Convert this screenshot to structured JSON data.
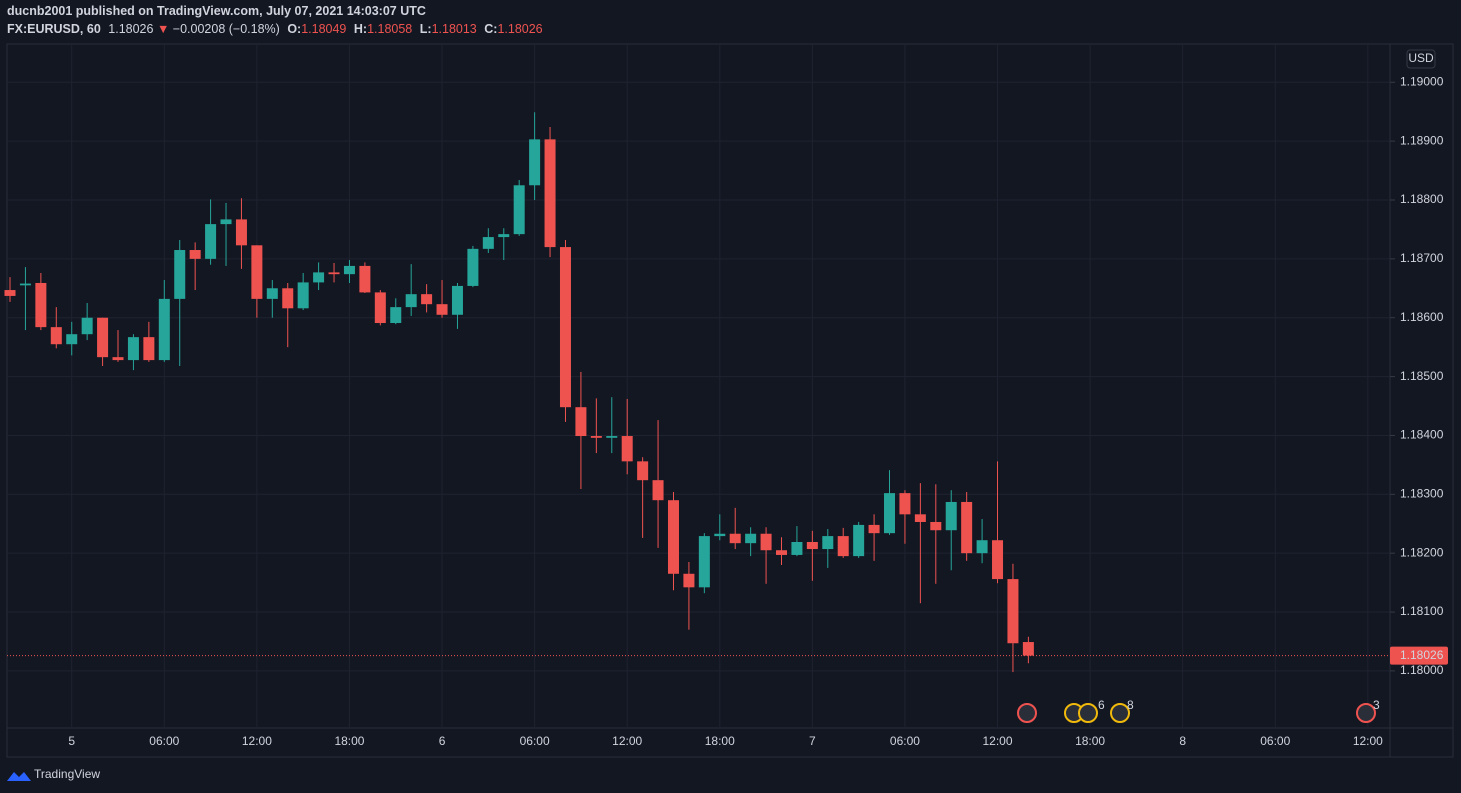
{
  "header": {
    "publisher": "ducnb2001 published on TradingView.com, July 07, 2021 14:03:07 UTC",
    "symbol": "FX:EURUSD, 60",
    "price": "1.18026",
    "arrow": "▼",
    "change": "−0.00208 (−0.18%)",
    "o_label": "O:",
    "o": "1.18049",
    "h_label": "H:",
    "h": "1.18058",
    "l_label": "L:",
    "l": "1.18013",
    "c_label": "C:",
    "c": "1.18026"
  },
  "footer": {
    "brand": "TradingView"
  },
  "chart_data": {
    "type": "candlestick",
    "currency": "USD",
    "up_color": "#26a69a",
    "down_color": "#ef5350",
    "grid": true,
    "categories": [
      null,
      null,
      null,
      null,
      "5",
      null,
      null,
      null,
      null,
      null,
      "06:00",
      null,
      null,
      null,
      null,
      null,
      "12:00",
      null,
      null,
      null,
      null,
      null,
      "18:00",
      null,
      null,
      null,
      null,
      null,
      "6",
      null,
      null,
      null,
      null,
      null,
      "06:00",
      null,
      null,
      null,
      null,
      null,
      "12:00",
      null,
      null,
      null,
      null,
      null,
      "18:00",
      null,
      null,
      null,
      null,
      null,
      "7",
      null,
      null,
      null,
      null,
      null,
      "06:00",
      null,
      null,
      null,
      null,
      null,
      "12:00",
      null,
      null,
      null,
      null,
      null,
      "18:00",
      null,
      null,
      null,
      null,
      null,
      "8",
      null,
      null,
      null,
      null,
      null,
      "06:00",
      null,
      null,
      null,
      null,
      null,
      "12:00",
      null
    ],
    "open": [
      1.18647,
      1.18655,
      1.18659,
      1.18584,
      1.18555,
      1.18572,
      1.186,
      1.18533,
      1.18528,
      1.18567,
      1.18528,
      1.18632,
      1.18715,
      1.187,
      1.18759,
      1.18767,
      1.18723,
      1.18632,
      1.1865,
      1.18616,
      1.1866,
      1.18677,
      1.18674,
      1.18688,
      1.18643,
      1.18591,
      1.18618,
      1.1864,
      1.18623,
      1.18605,
      1.18654,
      1.18717,
      1.18737,
      1.18742,
      1.18825,
      1.18903,
      1.1872,
      1.18448,
      1.18399,
      1.18396,
      1.18399,
      1.18356,
      1.18324,
      1.1829,
      1.18165,
      1.18142,
      1.18229,
      1.18233,
      1.18217,
      1.18233,
      1.18205,
      1.18197,
      1.18219,
      1.18207,
      1.18229,
      1.18195,
      1.18248,
      1.18234,
      1.18302,
      1.18266,
      1.18253,
      1.18239,
      1.18287,
      1.182,
      1.18222,
      1.18156,
      1.18049,
      null,
      null,
      null,
      null,
      null,
      null,
      null,
      null,
      null,
      null,
      null,
      null,
      null,
      null,
      null,
      null,
      null,
      null,
      null,
      null,
      null,
      null,
      null
    ],
    "high": [
      1.18669,
      1.18686,
      1.18676,
      1.18618,
      1.18593,
      1.18625,
      1.186,
      1.18579,
      1.18572,
      1.18593,
      1.18664,
      1.18732,
      1.18728,
      1.18801,
      1.18795,
      1.18803,
      1.18723,
      1.18664,
      1.18659,
      1.18676,
      1.18694,
      1.18693,
      1.18698,
      1.18694,
      1.18647,
      1.18633,
      1.18691,
      1.18657,
      1.18664,
      1.18659,
      1.18722,
      1.18752,
      1.18752,
      1.18834,
      1.18949,
      1.18924,
      1.18732,
      1.18508,
      1.18463,
      1.18465,
      1.18462,
      1.18363,
      1.18426,
      1.18304,
      1.18185,
      1.18234,
      1.18266,
      1.18277,
      1.18244,
      1.18244,
      1.18227,
      1.18246,
      1.18238,
      1.18241,
      1.18243,
      1.18253,
      1.18266,
      1.18341,
      1.18307,
      1.18319,
      1.18317,
      1.18307,
      1.18304,
      1.18258,
      1.18356,
      1.18182,
      1.18058,
      null,
      null,
      null,
      null,
      null,
      null,
      null,
      null,
      null,
      null,
      null,
      null,
      null,
      null,
      null,
      null,
      null,
      null,
      null,
      null,
      null,
      null,
      null
    ],
    "low": [
      1.18627,
      1.18579,
      1.18579,
      1.18548,
      1.18536,
      1.18562,
      1.18518,
      1.18525,
      1.18511,
      1.18525,
      1.18525,
      1.18518,
      1.18647,
      1.1869,
      1.18688,
      1.18683,
      1.186,
      1.186,
      1.1855,
      1.18613,
      1.18647,
      1.1866,
      1.18659,
      1.18642,
      1.18587,
      1.18589,
      1.18603,
      1.18609,
      1.186,
      1.18581,
      1.18652,
      1.1871,
      1.18698,
      1.18739,
      1.188,
      1.18703,
      1.18423,
      1.18309,
      1.1837,
      1.1837,
      1.18334,
      1.18226,
      1.18209,
      1.18137,
      1.1807,
      1.18132,
      1.18222,
      1.18207,
      1.18195,
      1.18148,
      1.1818,
      1.18195,
      1.18153,
      1.18175,
      1.18192,
      1.18192,
      1.18187,
      1.18231,
      1.18216,
      1.18115,
      1.18148,
      1.18171,
      1.18187,
      1.18183,
      1.18149,
      1.17998,
      1.18013,
      null,
      null,
      null,
      null,
      null,
      null,
      null,
      null,
      null,
      null,
      null,
      null,
      null,
      null,
      null,
      null,
      null,
      null,
      null,
      null,
      null,
      null,
      null
    ],
    "close": [
      1.18637,
      1.18658,
      1.18584,
      1.18555,
      1.18572,
      1.186,
      1.18533,
      1.18528,
      1.18567,
      1.18528,
      1.18632,
      1.18715,
      1.187,
      1.18759,
      1.18767,
      1.18723,
      1.18632,
      1.1865,
      1.18616,
      1.1866,
      1.18677,
      1.18674,
      1.18688,
      1.18643,
      1.18591,
      1.18618,
      1.1864,
      1.18623,
      1.18605,
      1.18654,
      1.18717,
      1.18737,
      1.18742,
      1.18825,
      1.18903,
      1.1872,
      1.18448,
      1.18399,
      1.18396,
      1.18399,
      1.18356,
      1.18324,
      1.1829,
      1.18165,
      1.18142,
      1.18229,
      1.18233,
      1.18217,
      1.18233,
      1.18205,
      1.18197,
      1.18219,
      1.18207,
      1.18229,
      1.18195,
      1.18248,
      1.18234,
      1.18302,
      1.18266,
      1.18253,
      1.18239,
      1.18287,
      1.182,
      1.18222,
      1.18156,
      1.18047,
      1.18026,
      null,
      null,
      null,
      null,
      null,
      null,
      null,
      null,
      null,
      null,
      null,
      null,
      null,
      null,
      null,
      null,
      null,
      null,
      null,
      null,
      null,
      null,
      null
    ],
    "last_price": 1.18026,
    "ylim": [
      1.17903,
      1.19065
    ],
    "yticks": [
      {
        "value": 1.18,
        "label": "1.18000"
      },
      {
        "value": 1.181,
        "label": "1.18100"
      },
      {
        "value": 1.182,
        "label": "1.18200"
      },
      {
        "value": 1.183,
        "label": "1.18300"
      },
      {
        "value": 1.184,
        "label": "1.18400"
      },
      {
        "value": 1.185,
        "label": "1.18500"
      },
      {
        "value": 1.186,
        "label": "1.18600"
      },
      {
        "value": 1.187,
        "label": "1.18700"
      },
      {
        "value": 1.188,
        "label": "1.18800"
      },
      {
        "value": 1.189,
        "label": "1.18900"
      },
      {
        "value": 1.19,
        "label": "1.19000"
      }
    ],
    "event_badges": [
      "6",
      "8",
      "3"
    ]
  }
}
